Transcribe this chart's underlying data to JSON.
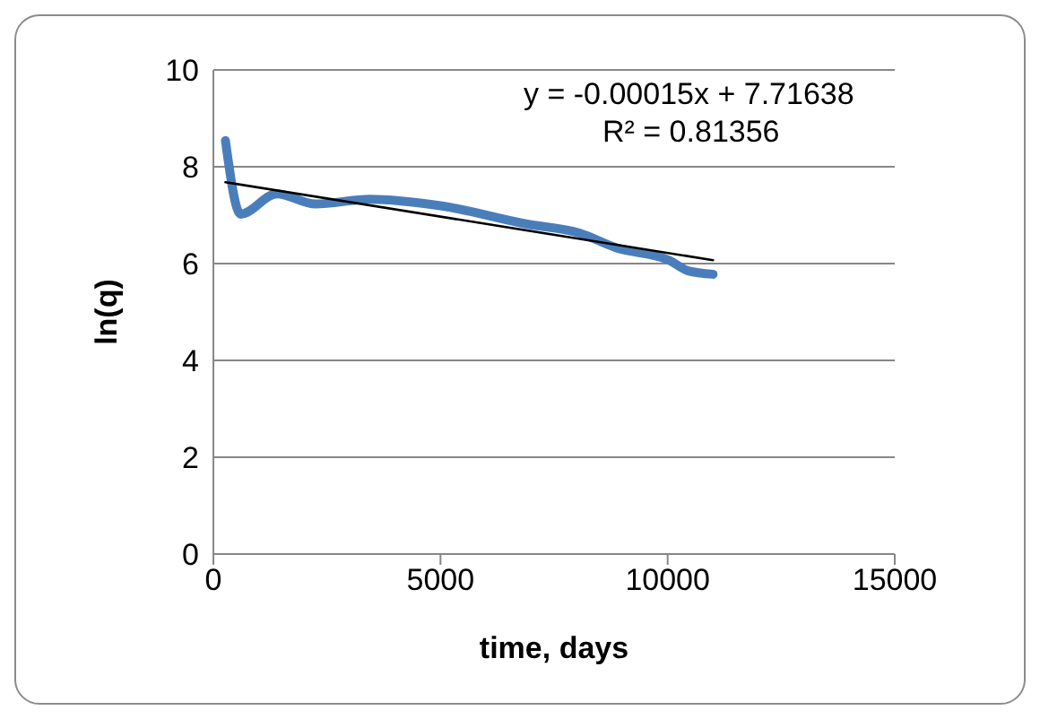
{
  "chart_data": {
    "type": "line",
    "xlabel": "time, days",
    "ylabel": "ln(q)",
    "xlim": [
      0,
      15000
    ],
    "xticks": [
      0,
      5000,
      10000,
      15000
    ],
    "ylim": [
      0,
      10
    ],
    "yticks": [
      0,
      2,
      4,
      6,
      8,
      10
    ],
    "grid": "y",
    "marker": "none",
    "series": [
      {
        "color": "#4a7ebb",
        "x": [
          265,
          600,
          1390,
          2250,
          3440,
          5030,
          6880,
          8060,
          8860,
          10050,
          10450,
          11000
        ],
        "values": [
          8.54,
          7.02,
          7.44,
          7.23,
          7.33,
          7.19,
          6.82,
          6.63,
          6.33,
          6.06,
          5.85,
          5.78
        ]
      },
      {
        "type": "line",
        "color": "#000000",
        "x": [
          265,
          11000
        ],
        "values": [
          7.68,
          6.07
        ]
      }
    ],
    "annotations": [
      "y = -0.00015x + 7.71638",
      "R² = 0.81356"
    ]
  }
}
